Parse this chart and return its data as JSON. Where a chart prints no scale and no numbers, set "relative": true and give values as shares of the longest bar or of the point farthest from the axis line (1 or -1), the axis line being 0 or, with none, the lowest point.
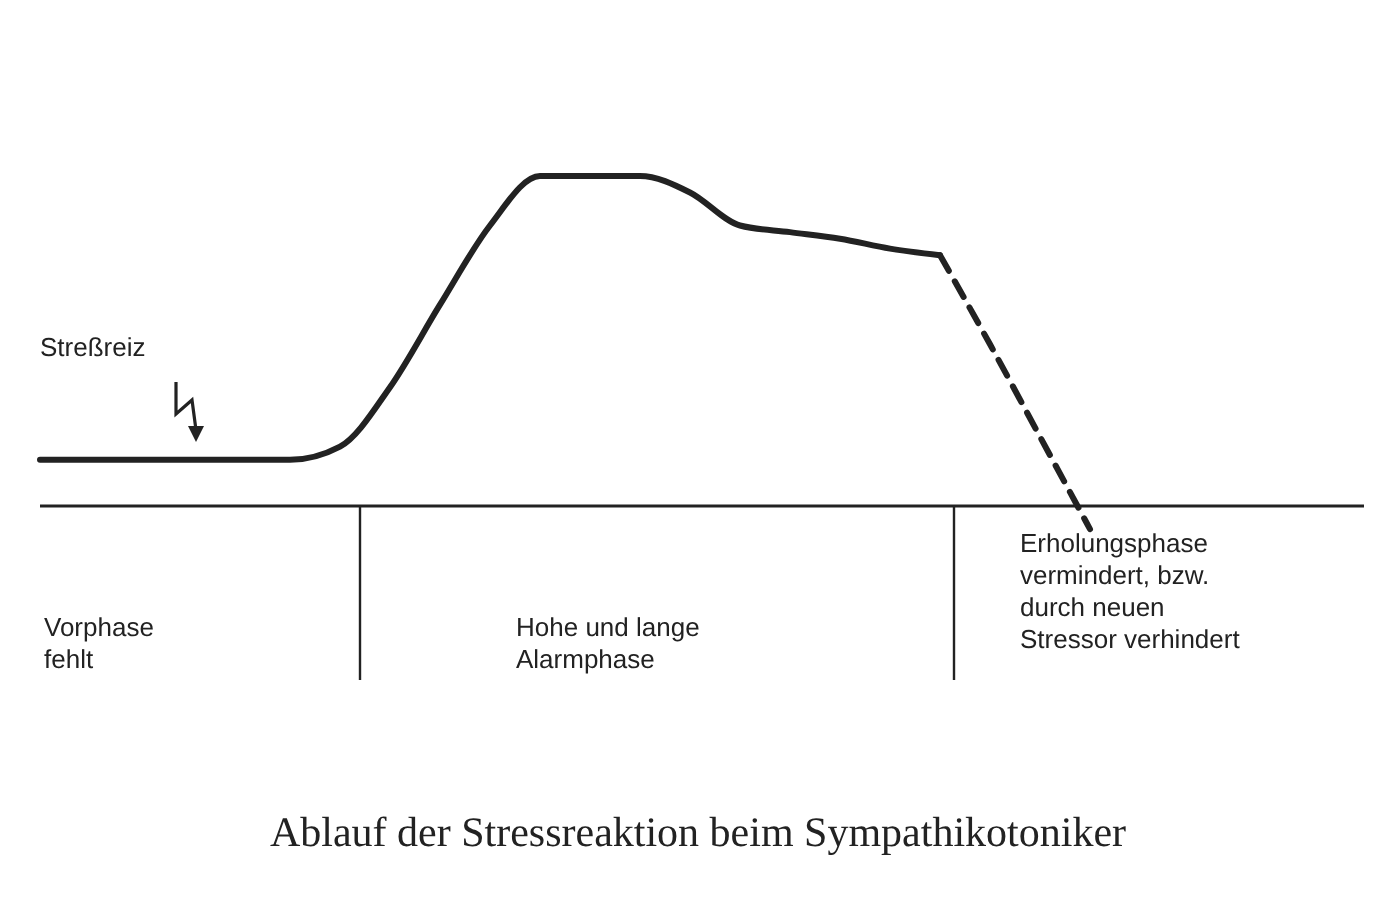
{
  "chart_data": {
    "type": "line",
    "title": "Ablauf der Stressreaktion beim Sympathikotoniker",
    "categories": [
      null,
      null,
      null,
      null,
      null,
      null,
      null,
      null,
      null,
      null,
      null,
      null,
      null,
      null,
      null,
      null,
      null,
      null,
      null,
      null,
      null,
      null
    ],
    "series": [
      {
        "color": "#222222",
        "line_style": "solid",
        "values": [
          0.14,
          0.14,
          0.14,
          0.14,
          0.14,
          0.14,
          0.18,
          0.36,
          0.61,
          0.85,
          1,
          1,
          1,
          0.95,
          0.85,
          0.83,
          0.81,
          0.78,
          0.76,
          null,
          null,
          null
        ]
      },
      {
        "color": "#222222",
        "line_style": "dashed",
        "values": [
          null,
          null,
          null,
          null,
          null,
          null,
          null,
          null,
          null,
          null,
          null,
          null,
          null,
          null,
          null,
          null,
          null,
          null,
          0.76,
          0.49,
          0.21,
          -0.07
        ]
      }
    ],
    "annotations": [
      "Streßreiz",
      "Vorphase\nfehlt",
      "Hohe und lange\nAlarmphase",
      "Erholungsphase\nvermindert, bzw.\ndurch neuen\nStressor verhindert"
    ],
    "relative": true
  }
}
